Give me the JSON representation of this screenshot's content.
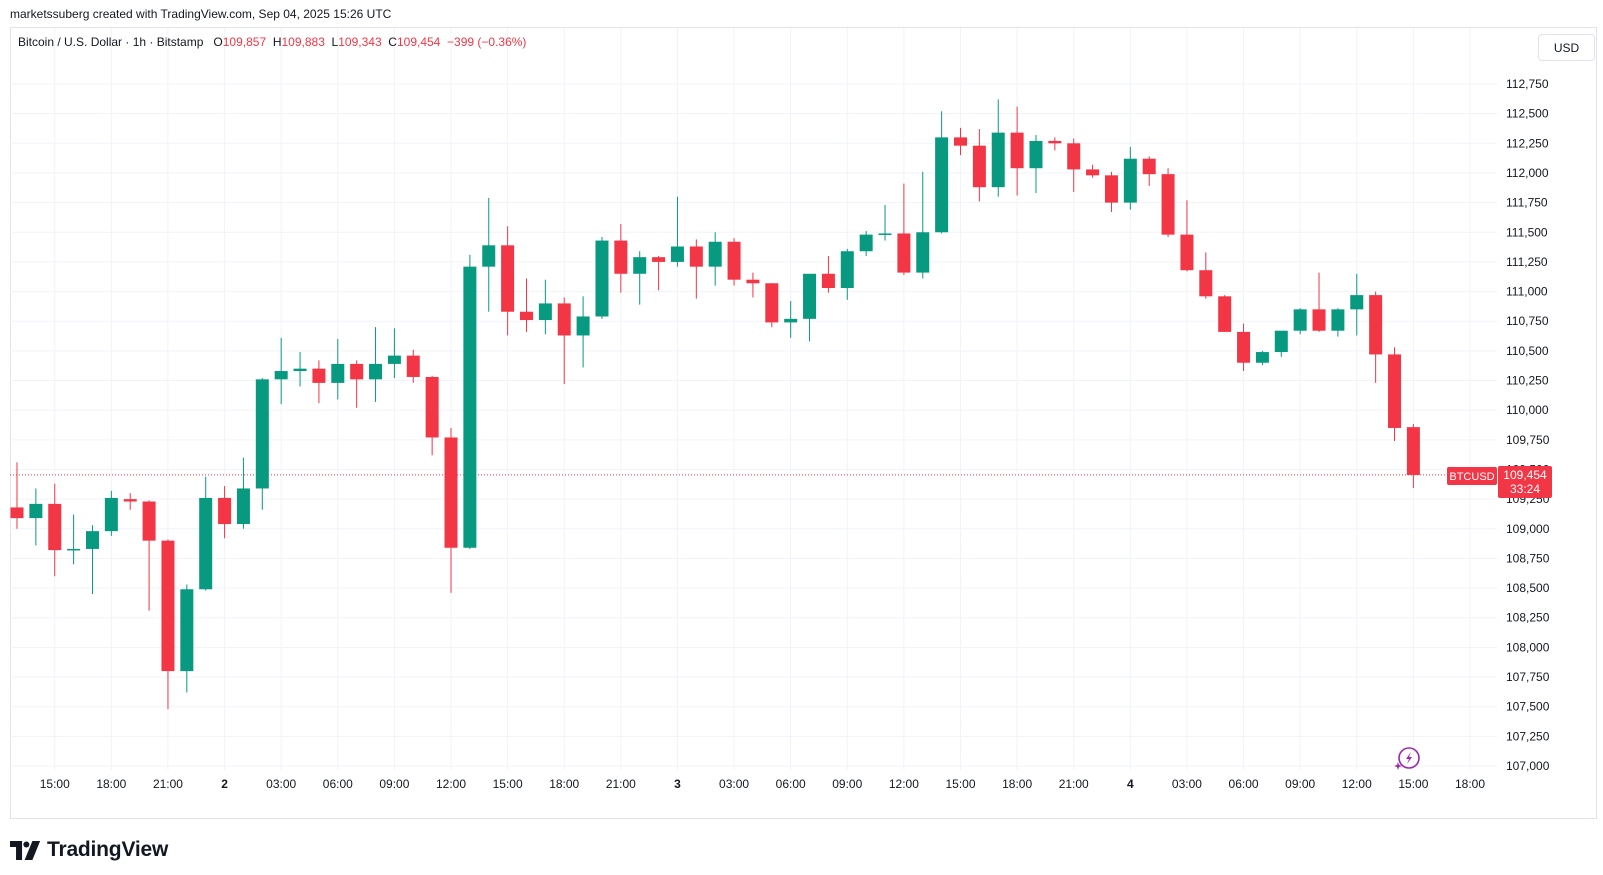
{
  "header": {
    "attribution": "marketssuberg created with TradingView.com, Sep 04, 2025 15:26 UTC"
  },
  "legend": {
    "symbol": "Bitcoin / U.S. Dollar · 1h · Bitstamp",
    "open_label": "O",
    "open": "109,857",
    "high_label": "H",
    "high": "109,883",
    "low_label": "L",
    "low": "109,343",
    "close_label": "C",
    "close": "109,454",
    "change": "−399 (−0.36%)"
  },
  "currency_button": "USD",
  "price_tag": {
    "ticker": "BTCUSD",
    "price": "109,454",
    "countdown": "33:24"
  },
  "footer": {
    "brand": "TradingView"
  },
  "colors": {
    "up": "#089981",
    "down": "#f23645",
    "grid": "#f0f3fa",
    "last_line": "#f23645"
  },
  "icons": {
    "bottom_right": "lightning-icon"
  },
  "chart_data": {
    "type": "candlestick",
    "interval": "1h",
    "ylim": [
      106950,
      112950
    ],
    "y_ticks": [
      {
        "value": 107000,
        "label": "107,000"
      },
      {
        "value": 107250,
        "label": "107,250"
      },
      {
        "value": 107500,
        "label": "107,500"
      },
      {
        "value": 107750,
        "label": "107,750"
      },
      {
        "value": 108000,
        "label": "108,000"
      },
      {
        "value": 108250,
        "label": "108,250"
      },
      {
        "value": 108500,
        "label": "108,500"
      },
      {
        "value": 108750,
        "label": "108,750"
      },
      {
        "value": 109000,
        "label": "109,000"
      },
      {
        "value": 109250,
        "label": "109,250"
      },
      {
        "value": 109500,
        "label": "109,500"
      },
      {
        "value": 109750,
        "label": "109,750"
      },
      {
        "value": 110000,
        "label": "110,000"
      },
      {
        "value": 110250,
        "label": "110,250"
      },
      {
        "value": 110500,
        "label": "110,500"
      },
      {
        "value": 110750,
        "label": "110,750"
      },
      {
        "value": 111000,
        "label": "111,000"
      },
      {
        "value": 111250,
        "label": "111,250"
      },
      {
        "value": 111500,
        "label": "111,500"
      },
      {
        "value": 111750,
        "label": "111,750"
      },
      {
        "value": 112000,
        "label": "112,000"
      },
      {
        "value": 112250,
        "label": "112,250"
      },
      {
        "value": 112500,
        "label": "112,500"
      },
      {
        "value": 112750,
        "label": "112,750"
      }
    ],
    "x_ticks": [
      {
        "index": 2,
        "label": "15:00",
        "bold": false
      },
      {
        "index": 5,
        "label": "18:00",
        "bold": false
      },
      {
        "index": 8,
        "label": "21:00",
        "bold": false
      },
      {
        "index": 11,
        "label": "2",
        "bold": true
      },
      {
        "index": 14,
        "label": "03:00",
        "bold": false
      },
      {
        "index": 17,
        "label": "06:00",
        "bold": false
      },
      {
        "index": 20,
        "label": "09:00",
        "bold": false
      },
      {
        "index": 23,
        "label": "12:00",
        "bold": false
      },
      {
        "index": 26,
        "label": "15:00",
        "bold": false
      },
      {
        "index": 29,
        "label": "18:00",
        "bold": false
      },
      {
        "index": 32,
        "label": "21:00",
        "bold": false
      },
      {
        "index": 35,
        "label": "3",
        "bold": true
      },
      {
        "index": 38,
        "label": "03:00",
        "bold": false
      },
      {
        "index": 41,
        "label": "06:00",
        "bold": false
      },
      {
        "index": 44,
        "label": "09:00",
        "bold": false
      },
      {
        "index": 47,
        "label": "12:00",
        "bold": false
      },
      {
        "index": 50,
        "label": "15:00",
        "bold": false
      },
      {
        "index": 53,
        "label": "18:00",
        "bold": false
      },
      {
        "index": 56,
        "label": "21:00",
        "bold": false
      },
      {
        "index": 59,
        "label": "4",
        "bold": true
      },
      {
        "index": 62,
        "label": "03:00",
        "bold": false
      },
      {
        "index": 65,
        "label": "06:00",
        "bold": false
      },
      {
        "index": 68,
        "label": "09:00",
        "bold": false
      },
      {
        "index": 71,
        "label": "12:00",
        "bold": false
      },
      {
        "index": 74,
        "label": "15:00",
        "bold": false
      },
      {
        "index": 77,
        "label": "18:00",
        "bold": false
      }
    ],
    "last_price": 109454,
    "candles": [
      [
        109180,
        109560,
        109000,
        109090
      ],
      [
        109090,
        109340,
        108860,
        109210
      ],
      [
        109210,
        109380,
        108600,
        108820
      ],
      [
        108820,
        109120,
        108700,
        108830
      ],
      [
        108830,
        109030,
        108450,
        108980
      ],
      [
        108980,
        109320,
        108940,
        109260
      ],
      [
        109250,
        109300,
        109160,
        109230
      ],
      [
        109230,
        109240,
        108310,
        108900
      ],
      [
        108900,
        108910,
        107480,
        107800
      ],
      [
        107800,
        108530,
        107620,
        108490
      ],
      [
        108490,
        109440,
        108480,
        109260
      ],
      [
        109260,
        109360,
        108920,
        109040
      ],
      [
        109040,
        109600,
        109000,
        109340
      ],
      [
        109340,
        110270,
        109160,
        110260
      ],
      [
        110260,
        110610,
        110050,
        110330
      ],
      [
        110330,
        110490,
        110200,
        110350
      ],
      [
        110350,
        110420,
        110060,
        110230
      ],
      [
        110230,
        110600,
        110090,
        110390
      ],
      [
        110390,
        110420,
        110020,
        110260
      ],
      [
        110260,
        110700,
        110070,
        110390
      ],
      [
        110390,
        110690,
        110270,
        110460
      ],
      [
        110460,
        110510,
        110230,
        110280
      ],
      [
        110280,
        110290,
        109620,
        109770
      ],
      [
        109770,
        109850,
        108460,
        108840
      ],
      [
        108840,
        111310,
        108830,
        111210
      ],
      [
        111210,
        111790,
        110830,
        111390
      ],
      [
        111390,
        111550,
        110630,
        110830
      ],
      [
        110830,
        111110,
        110660,
        110760
      ],
      [
        110760,
        111100,
        110640,
        110900
      ],
      [
        110900,
        110950,
        110220,
        110630
      ],
      [
        110630,
        110960,
        110360,
        110790
      ],
      [
        110790,
        111460,
        110770,
        111430
      ],
      [
        111430,
        111570,
        110990,
        111150
      ],
      [
        111150,
        111340,
        110890,
        111290
      ],
      [
        111290,
        111300,
        111010,
        111250
      ],
      [
        111250,
        111800,
        111210,
        111380
      ],
      [
        111380,
        111440,
        110940,
        111210
      ],
      [
        111210,
        111500,
        111050,
        111420
      ],
      [
        111420,
        111450,
        111050,
        111100
      ],
      [
        111100,
        111160,
        110950,
        111070
      ],
      [
        111070,
        111070,
        110700,
        110740
      ],
      [
        110740,
        110920,
        110610,
        110770
      ],
      [
        110770,
        111130,
        110580,
        111150
      ],
      [
        111150,
        111300,
        110990,
        111030
      ],
      [
        111030,
        111360,
        110930,
        111340
      ],
      [
        111340,
        111510,
        111300,
        111480
      ],
      [
        111480,
        111730,
        111430,
        111490
      ],
      [
        111490,
        111910,
        111140,
        111160
      ],
      [
        111160,
        112010,
        111110,
        111500
      ],
      [
        111500,
        112520,
        111490,
        112300
      ],
      [
        112300,
        112380,
        112150,
        112230
      ],
      [
        112230,
        112370,
        111760,
        111880
      ],
      [
        111880,
        112620,
        111800,
        112340
      ],
      [
        112340,
        112560,
        111810,
        112040
      ],
      [
        112040,
        112320,
        111830,
        112270
      ],
      [
        112270,
        112300,
        112190,
        112250
      ],
      [
        112250,
        112290,
        111840,
        112030
      ],
      [
        112030,
        112070,
        111960,
        111980
      ],
      [
        111980,
        112010,
        111670,
        111750
      ],
      [
        111750,
        112220,
        111690,
        112120
      ],
      [
        112120,
        112140,
        111890,
        111990
      ],
      [
        111990,
        112040,
        111460,
        111480
      ],
      [
        111480,
        111770,
        111170,
        111180
      ],
      [
        111180,
        111330,
        110940,
        110960
      ],
      [
        110960,
        110970,
        110660,
        110660
      ],
      [
        110660,
        110730,
        110330,
        110400
      ],
      [
        110400,
        110500,
        110380,
        110490
      ],
      [
        110490,
        110650,
        110450,
        110670
      ],
      [
        110670,
        110860,
        110640,
        110850
      ],
      [
        110850,
        111160,
        110660,
        110670
      ],
      [
        110670,
        110860,
        110620,
        110850
      ],
      [
        110850,
        111150,
        110630,
        110970
      ],
      [
        110970,
        111000,
        110230,
        110470
      ],
      [
        110470,
        110530,
        109740,
        109850
      ],
      [
        109857,
        109883,
        109343,
        109454
      ]
    ]
  }
}
